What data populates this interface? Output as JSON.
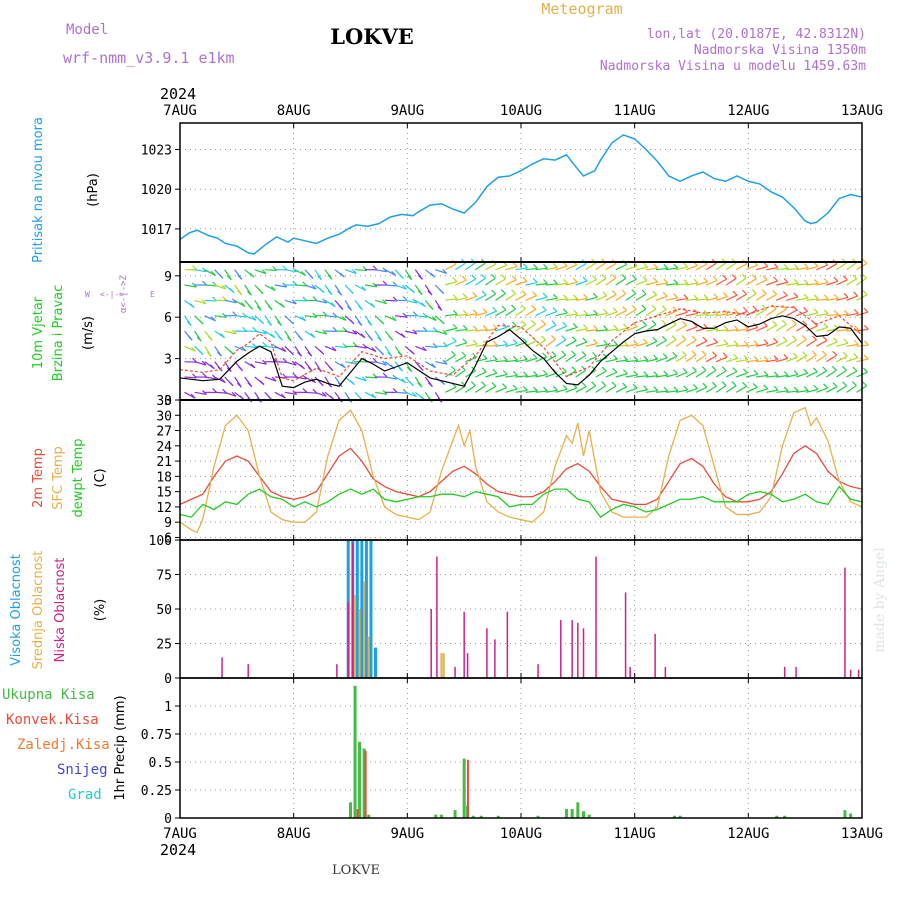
{
  "header": {
    "model_label": "Model",
    "model_name": "wrf-nmm_v3.9.1 e1km",
    "station": "LOKVE",
    "meteogram": "Meteogram",
    "lonlat": "lon,lat (20.0187E, 42.8312N)",
    "elevation": "Nadmorska Visina 1350m",
    "model_elevation": "Nadmorska Visina u modelu 1459.63m"
  },
  "footer": {
    "station": "LOKVE",
    "credit": "made by Angel"
  },
  "colors": {
    "pressure": "#1ea0e6",
    "wind_label": "#22cc22",
    "temp2m": "#e84c3c",
    "sfc": "#e8b04c",
    "dew": "#22cc22",
    "high_cloud": "#1ea0e6",
    "mid_cloud": "#e8b04c",
    "low_cloud": "#cc2288",
    "total_precip": "#44bb44",
    "conv_precip": "#e84c3c",
    "frozen": "#f07a30",
    "snow": "#4444dd",
    "graupel": "#22cccc",
    "title_accent": "#e8b04c",
    "header_purple": "#b070d0"
  },
  "chart_data": [
    {
      "type": "line",
      "title": "",
      "year": "2024",
      "x_categories": [
        "7AUG",
        "8AUG",
        "9AUG",
        "10AUG",
        "11AUG",
        "12AUG",
        "13AUG"
      ],
      "ylabel": "Pritisak na nivou mora",
      "unit": "(hPa)",
      "ylim": [
        1014.5,
        1025
      ],
      "yticks": [
        1017,
        1020,
        1023
      ],
      "series": [
        {
          "name": "Pritisak na nivou mora",
          "x": [
            0,
            0.08,
            0.15,
            0.25,
            0.33,
            0.4,
            0.5,
            0.6,
            0.65,
            0.75,
            0.85,
            0.95,
            1.0,
            1.1,
            1.2,
            1.3,
            1.4,
            1.5,
            1.55,
            1.65,
            1.75,
            1.85,
            1.95,
            2.05,
            2.1,
            2.2,
            2.3,
            2.4,
            2.5,
            2.6,
            2.7,
            2.8,
            2.9,
            3.0,
            3.1,
            3.2,
            3.3,
            3.4,
            3.5,
            3.55,
            3.65,
            3.7,
            3.8,
            3.9,
            4.0,
            4.1,
            4.2,
            4.3,
            4.4,
            4.5,
            4.6,
            4.7,
            4.8,
            4.9,
            5.0,
            5.1,
            5.2,
            5.3,
            5.4,
            5.5,
            5.55,
            5.6,
            5.7,
            5.8,
            5.9,
            6.0
          ],
          "values": [
            1016.2,
            1016.7,
            1016.9,
            1016.5,
            1016.3,
            1015.9,
            1015.7,
            1015.2,
            1015.1,
            1015.8,
            1016.4,
            1016.0,
            1016.3,
            1016.1,
            1015.9,
            1016.3,
            1016.6,
            1017.1,
            1017.3,
            1017.2,
            1017.4,
            1017.9,
            1018.1,
            1018.0,
            1018.3,
            1018.8,
            1018.9,
            1018.5,
            1018.2,
            1019.0,
            1020.2,
            1020.9,
            1021.0,
            1021.4,
            1021.9,
            1022.3,
            1022.2,
            1022.6,
            1021.5,
            1021.0,
            1021.4,
            1022.2,
            1023.5,
            1024.1,
            1023.8,
            1023.0,
            1022.1,
            1021.0,
            1020.6,
            1021.0,
            1021.3,
            1020.8,
            1020.6,
            1021.0,
            1020.6,
            1020.4,
            1019.8,
            1019.4,
            1018.6,
            1017.6,
            1017.4,
            1017.5,
            1018.2,
            1019.3,
            1019.6,
            1019.4
          ]
        }
      ]
    },
    {
      "type": "line",
      "title": "",
      "ylabel": "10m Vjetar Brzina i Pravac",
      "unit": "(m/s)",
      "compass_legend": "W <-|-> E",
      "ylim": [
        0,
        10
      ],
      "yticks": [
        0,
        3,
        6,
        9
      ],
      "series": [
        {
          "name": "wind speed",
          "color": "#000000",
          "x": [
            0,
            0.2,
            0.35,
            0.5,
            0.6,
            0.7,
            0.8,
            0.9,
            1.0,
            1.1,
            1.2,
            1.3,
            1.4,
            1.5,
            1.6,
            1.7,
            1.8,
            2.0,
            2.2,
            2.4,
            2.5,
            2.6,
            2.7,
            2.8,
            2.9,
            3.0,
            3.1,
            3.2,
            3.3,
            3.4,
            3.5,
            3.6,
            3.7,
            3.8,
            3.9,
            4.0,
            4.1,
            4.2,
            4.3,
            4.4,
            4.5,
            4.6,
            4.7,
            4.8,
            4.9,
            5.0,
            5.1,
            5.2,
            5.3,
            5.4,
            5.5,
            5.6,
            5.7,
            5.8,
            5.9,
            6.0
          ],
          "values": [
            1.6,
            1.4,
            1.5,
            2.8,
            3.4,
            3.9,
            3.5,
            1.0,
            0.9,
            1.3,
            1.5,
            1.2,
            1.0,
            2.0,
            3.0,
            2.6,
            2.1,
            2.7,
            1.6,
            1.2,
            1.0,
            2.5,
            4.2,
            4.6,
            5.1,
            4.4,
            3.6,
            3.0,
            2.0,
            1.2,
            1.1,
            1.8,
            2.8,
            3.5,
            4.2,
            4.8,
            5.0,
            5.1,
            5.5,
            5.9,
            5.7,
            5.2,
            5.2,
            5.6,
            5.8,
            5.3,
            5.5,
            5.9,
            6.1,
            5.9,
            5.4,
            4.6,
            4.7,
            5.3,
            5.2,
            4.1
          ]
        },
        {
          "name": "gust",
          "color": "#e84c3c",
          "x": [
            0,
            0.2,
            0.35,
            0.5,
            0.6,
            0.7,
            0.8,
            0.9,
            1.0,
            1.2,
            1.4,
            1.6,
            1.8,
            2.0,
            2.2,
            2.4,
            2.6,
            2.8,
            3.0,
            3.2,
            3.4,
            3.6,
            3.8,
            4.0,
            4.2,
            4.4,
            4.6,
            4.8,
            5.0,
            5.2,
            5.4,
            5.6,
            5.8,
            6.0
          ],
          "values": [
            2.2,
            2.0,
            2.2,
            3.6,
            4.1,
            4.8,
            4.2,
            1.6,
            1.4,
            2.3,
            1.7,
            3.5,
            3.0,
            3.2,
            2.1,
            1.8,
            3.2,
            5.4,
            5.3,
            3.8,
            1.7,
            2.4,
            4.3,
            5.6,
            6.1,
            6.6,
            6.3,
            6.4,
            6.2,
            6.8,
            6.7,
            5.5,
            6.1,
            4.7
          ]
        }
      ],
      "barb_colors": [
        "#8a2be2",
        "#4488ff",
        "#22ccdd",
        "#22cc44",
        "#aadd22",
        "#ffaa22",
        "#ff5533"
      ]
    },
    {
      "type": "line",
      "title": "",
      "ylabel": "2m Temp / SFC Temp / dewpt Temp",
      "unit": "(C)",
      "ylim": [
        5.5,
        33
      ],
      "yticks": [
        6,
        9,
        12,
        15,
        18,
        21,
        24,
        27,
        30,
        33
      ],
      "series": [
        {
          "name": "2m Temp",
          "color": "#e84c3c",
          "x": [
            0,
            0.1,
            0.2,
            0.3,
            0.4,
            0.5,
            0.6,
            0.7,
            0.8,
            0.9,
            1.0,
            1.1,
            1.2,
            1.3,
            1.4,
            1.5,
            1.6,
            1.7,
            1.8,
            1.9,
            2.0,
            2.1,
            2.2,
            2.3,
            2.4,
            2.5,
            2.6,
            2.7,
            2.8,
            2.9,
            3.0,
            3.1,
            3.2,
            3.3,
            3.4,
            3.5,
            3.6,
            3.7,
            3.8,
            3.9,
            4.0,
            4.1,
            4.2,
            4.3,
            4.4,
            4.5,
            4.6,
            4.7,
            4.8,
            4.9,
            5.0,
            5.1,
            5.2,
            5.3,
            5.4,
            5.5,
            5.6,
            5.7,
            5.8,
            5.9,
            6.0
          ],
          "values": [
            12.5,
            13.5,
            14.5,
            18.0,
            21.0,
            22.0,
            21.0,
            18.0,
            15.0,
            14.0,
            13.5,
            14.0,
            15.0,
            18.5,
            22.0,
            23.5,
            21.0,
            17.5,
            16.0,
            15.0,
            14.5,
            14.0,
            15.0,
            17.0,
            19.0,
            20.0,
            18.5,
            16.5,
            15.0,
            14.5,
            14.0,
            14.0,
            15.0,
            17.0,
            19.5,
            20.5,
            19.0,
            16.0,
            13.5,
            13.0,
            12.5,
            12.5,
            13.5,
            17.0,
            20.5,
            21.5,
            20.0,
            16.5,
            14.0,
            13.0,
            13.0,
            13.5,
            15.0,
            18.5,
            22.5,
            24.0,
            22.5,
            19.0,
            17.0,
            16.0,
            15.5
          ]
        },
        {
          "name": "SFC Temp",
          "color": "#e8b04c",
          "x": [
            0,
            0.1,
            0.15,
            0.2,
            0.3,
            0.4,
            0.5,
            0.6,
            0.7,
            0.8,
            0.9,
            1.0,
            1.1,
            1.2,
            1.3,
            1.4,
            1.5,
            1.6,
            1.7,
            1.8,
            1.9,
            2.0,
            2.1,
            2.2,
            2.3,
            2.4,
            2.45,
            2.5,
            2.55,
            2.6,
            2.7,
            2.8,
            2.9,
            3.0,
            3.1,
            3.2,
            3.3,
            3.4,
            3.45,
            3.5,
            3.55,
            3.6,
            3.7,
            3.8,
            3.9,
            4.0,
            4.1,
            4.2,
            4.3,
            4.4,
            4.5,
            4.6,
            4.7,
            4.8,
            4.9,
            5.0,
            5.1,
            5.2,
            5.3,
            5.4,
            5.5,
            5.55,
            5.6,
            5.7,
            5.8,
            5.9,
            6.0
          ],
          "values": [
            9.0,
            7.5,
            7.0,
            9.5,
            20.0,
            28.0,
            30.0,
            27.0,
            18.0,
            11.0,
            9.5,
            9.0,
            9.0,
            11.0,
            22.0,
            29.0,
            31.0,
            27.0,
            18.0,
            12.0,
            10.5,
            10.0,
            9.5,
            11.0,
            19.0,
            25.0,
            28.0,
            24.0,
            27.0,
            20.0,
            13.0,
            11.0,
            10.0,
            9.5,
            9.0,
            11.0,
            20.0,
            26.0,
            24.5,
            28.5,
            22.0,
            27.0,
            15.0,
            11.0,
            10.0,
            10.0,
            10.0,
            12.0,
            22.0,
            29.0,
            30.0,
            28.0,
            20.0,
            12.0,
            10.5,
            10.5,
            11.0,
            14.0,
            24.0,
            30.5,
            31.5,
            28.0,
            29.5,
            25.0,
            17.0,
            13.0,
            12.0
          ]
        },
        {
          "name": "dewpt Temp",
          "color": "#22cc22",
          "x": [
            0,
            0.1,
            0.2,
            0.3,
            0.4,
            0.5,
            0.6,
            0.7,
            0.8,
            0.9,
            1.0,
            1.1,
            1.2,
            1.3,
            1.4,
            1.5,
            1.6,
            1.7,
            1.8,
            1.9,
            2.0,
            2.1,
            2.2,
            2.3,
            2.4,
            2.5,
            2.6,
            2.7,
            2.8,
            2.9,
            3.0,
            3.1,
            3.2,
            3.3,
            3.4,
            3.5,
            3.6,
            3.7,
            3.8,
            3.9,
            4.0,
            4.1,
            4.2,
            4.3,
            4.4,
            4.5,
            4.6,
            4.7,
            4.8,
            4.9,
            5.0,
            5.1,
            5.2,
            5.3,
            5.4,
            5.5,
            5.6,
            5.7,
            5.8,
            5.9,
            6.0
          ],
          "values": [
            10.5,
            10.0,
            12.5,
            11.5,
            13.0,
            12.5,
            14.5,
            15.5,
            14.0,
            13.5,
            12.0,
            13.0,
            12.0,
            13.0,
            14.5,
            15.5,
            14.5,
            15.5,
            13.5,
            13.0,
            13.5,
            14.0,
            14.0,
            14.5,
            14.5,
            14.0,
            15.0,
            14.5,
            14.0,
            12.0,
            12.5,
            12.5,
            14.5,
            15.5,
            15.5,
            13.5,
            13.0,
            10.0,
            11.5,
            12.5,
            12.0,
            11.0,
            11.5,
            12.5,
            13.5,
            13.5,
            14.0,
            13.0,
            13.0,
            13.0,
            14.5,
            15.0,
            14.5,
            13.0,
            13.5,
            14.5,
            13.0,
            12.5,
            16.0,
            13.5,
            13.0
          ]
        }
      ]
    },
    {
      "type": "bar",
      "title": "",
      "ylabel": "Visoka Oblacnost / Srednja Oblacnost / Niska Oblacnost",
      "unit": "(%)",
      "ylim": [
        0,
        100
      ],
      "yticks": [
        0,
        25,
        50,
        75,
        100
      ],
      "series": [
        {
          "name": "Visoka Oblacnost",
          "color": "#1ea0e6",
          "x": [
            1.48,
            1.52,
            1.56,
            1.6,
            1.64,
            1.68,
            1.72
          ],
          "values": [
            100,
            100,
            100,
            100,
            100,
            100,
            22
          ]
        },
        {
          "name": "Srednja Oblacnost",
          "color": "#e8b04c",
          "x": [
            1.54,
            1.58,
            1.62,
            1.66,
            2.3,
            2.32
          ],
          "values": [
            60,
            50,
            70,
            30,
            18,
            18
          ]
        },
        {
          "name": "Niska Oblacnost",
          "color": "#cc2288",
          "x": [
            0.37,
            0.6,
            1.38,
            1.48,
            1.52,
            2.21,
            2.26,
            2.42,
            2.5,
            2.53,
            2.7,
            2.77,
            2.88,
            3.15,
            3.35,
            3.45,
            3.5,
            3.55,
            3.66,
            3.92,
            3.96,
            4.18,
            4.27,
            5.32,
            5.42,
            5.85,
            5.9,
            5.97
          ],
          "values": [
            15,
            10,
            10,
            55,
            98,
            50,
            88,
            8,
            48,
            18,
            36,
            28,
            48,
            10,
            42,
            42,
            40,
            36,
            88,
            62,
            8,
            32,
            8,
            8,
            8,
            80,
            6,
            6
          ]
        }
      ]
    },
    {
      "type": "bar",
      "title": "",
      "ylabel": "1hr Precip",
      "unit": "(mm)",
      "ylim": [
        0,
        1.25
      ],
      "yticks": [
        0,
        0.25,
        0.5,
        0.75,
        1
      ],
      "series": [
        {
          "name": "Ukupna Kisa",
          "color": "#44bb44",
          "x": [
            1.5,
            1.54,
            1.58,
            1.62,
            1.66,
            2.25,
            2.3,
            2.42,
            2.5,
            2.53,
            2.58,
            2.65,
            2.8,
            3.15,
            3.4,
            3.45,
            3.5,
            3.55,
            3.6,
            4.35,
            4.4,
            5.25,
            5.32,
            5.85,
            5.9
          ],
          "values": [
            0.14,
            1.18,
            0.68,
            0.62,
            0.03,
            0.03,
            0.03,
            0.07,
            0.53,
            0.11,
            0.02,
            0.02,
            0.02,
            0.02,
            0.08,
            0.08,
            0.14,
            0.06,
            0.03,
            0.02,
            0.02,
            0.02,
            0.02,
            0.07,
            0.04
          ]
        },
        {
          "name": "Konvek.Kisa",
          "color": "#e84c3c",
          "x": [
            1.55,
            1.62,
            2.52
          ],
          "values": [
            0.08,
            0.6,
            0.52
          ]
        },
        {
          "name": "Zaledj.Kisa",
          "color": "#f07a30",
          "x": [],
          "values": []
        },
        {
          "name": "Snijeg",
          "color": "#4444dd",
          "x": [],
          "values": []
        },
        {
          "name": "Grad",
          "color": "#22cccc",
          "x": [],
          "values": []
        }
      ]
    }
  ]
}
